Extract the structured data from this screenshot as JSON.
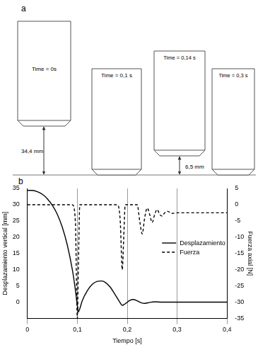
{
  "panel_labels": [
    "a",
    "b"
  ],
  "diagram": {
    "frames": [
      {
        "time": "Time = 0s"
      },
      {
        "time": "Time = 0,1 s"
      },
      {
        "time": "Time = 0,14 s"
      },
      {
        "time": "Time = 0,3 s"
      }
    ],
    "dimensions": [
      "34,4 mm",
      "6,5 mm"
    ]
  },
  "chart_data": {
    "type": "line",
    "x_label": "Tiempo [s]",
    "y_label": "Desplazamiento vertical [mm]",
    "y2_label": "Fuerza axial [N]",
    "xlim": [
      0,
      0.4
    ],
    "xticks": [
      0,
      {
        "value": 0.1,
        "label": "0,1"
      },
      {
        "value": 0.2,
        "label": "0,2"
      },
      {
        "value": 0.3,
        "label": "0,3"
      },
      {
        "value": 0.4,
        "label": "0,4"
      }
    ],
    "ylim": [
      -5,
      35
    ],
    "yticks": [
      0,
      5,
      10,
      15,
      20,
      25,
      30,
      35
    ],
    "y2lim": [
      -35,
      5
    ],
    "y2ticks": [
      -35,
      -30,
      -25,
      -20,
      -15,
      -10,
      -5,
      0,
      5
    ],
    "grid": true,
    "legend": "right",
    "series": [
      {
        "name": "Desplazamiento",
        "color": "#000000",
        "line_style": "solid",
        "axis": "y",
        "x": [
          0,
          0.01,
          0.02,
          0.03,
          0.04,
          0.05,
          0.06,
          0.07,
          0.08,
          0.09,
          0.095,
          0.1,
          0.102,
          0.105,
          0.11,
          0.12,
          0.13,
          0.14,
          0.147,
          0.155,
          0.165,
          0.175,
          0.185,
          0.19,
          0.195,
          0.205,
          0.212,
          0.22,
          0.228,
          0.235,
          0.245,
          0.255,
          0.27,
          0.3,
          0.35,
          0.4
        ],
        "values": [
          34.4,
          34.4,
          34.0,
          33.2,
          31.8,
          29.8,
          27,
          23,
          17.5,
          10,
          5,
          -1,
          -3,
          -2,
          0.5,
          3.5,
          5.5,
          6.4,
          6.5,
          6.2,
          4.8,
          2.5,
          0,
          -1,
          -0.6,
          0.5,
          0.8,
          0.4,
          -0.2,
          -0.4,
          -0.1,
          0.1,
          0,
          0,
          0,
          0
        ]
      },
      {
        "name": "Fuerza",
        "color": "#000000",
        "line_style": "dashed",
        "axis": "y2",
        "x": [
          0,
          0.09,
          0.096,
          0.1,
          0.102,
          0.105,
          0.18,
          0.186,
          0.19,
          0.193,
          0.196,
          0.22,
          0.225,
          0.23,
          0.235,
          0.24,
          0.245,
          0.25,
          0.255,
          0.26,
          0.265,
          0.27,
          0.275,
          0.28,
          0.29,
          0.3,
          0.4
        ],
        "values": [
          0,
          0,
          -5,
          -35,
          -20,
          0,
          0,
          -5,
          -20,
          -10,
          0,
          0,
          -5,
          -9,
          -4,
          -1,
          -3,
          -5.5,
          -3,
          -1.5,
          -3,
          -3.5,
          -2.5,
          -2,
          -2.7,
          -2.5,
          -2.5
        ]
      }
    ]
  }
}
